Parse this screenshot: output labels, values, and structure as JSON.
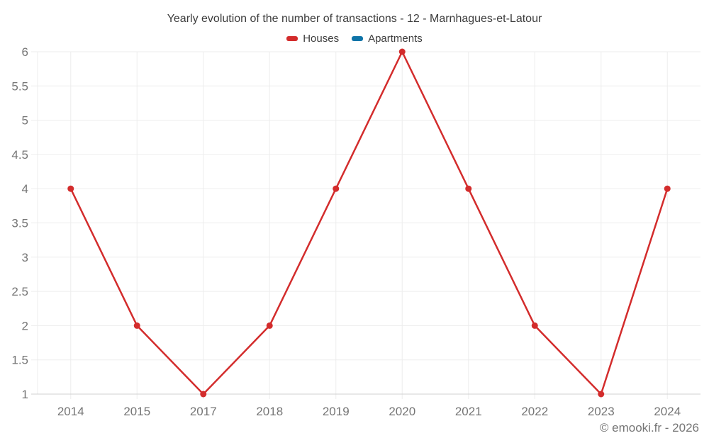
{
  "chart": {
    "title": "Yearly evolution of the number of transactions - 12 - Marnhagues-et-Latour"
  },
  "footer": {
    "credit": "© emooki.fr - 2026"
  },
  "colors": {
    "houses": "#d32c2c",
    "apartments": "#0f74a8",
    "gridline": "#ededed",
    "axis_line": "#d0d0d0",
    "tick_label": "#757575",
    "title_text": "#3d3d3d"
  },
  "chart_data": {
    "type": "line",
    "title": "Yearly evolution of the number of transactions - 12 - Marnhagues-et-Latour",
    "categories": [
      "2014",
      "2015",
      "2017",
      "2018",
      "2019",
      "2020",
      "2021",
      "2022",
      "2023",
      "2024"
    ],
    "series": [
      {
        "name": "Houses",
        "color": "#d32c2c",
        "values": [
          4,
          2,
          1,
          2,
          4,
          6,
          4,
          2,
          1,
          4
        ]
      },
      {
        "name": "Apartments",
        "color": "#0f74a8",
        "values": []
      }
    ],
    "xlabel": "",
    "ylabel": "",
    "ylim": [
      1,
      6
    ],
    "ytick_step": 0.5,
    "grid": true,
    "legend_position": "top"
  }
}
